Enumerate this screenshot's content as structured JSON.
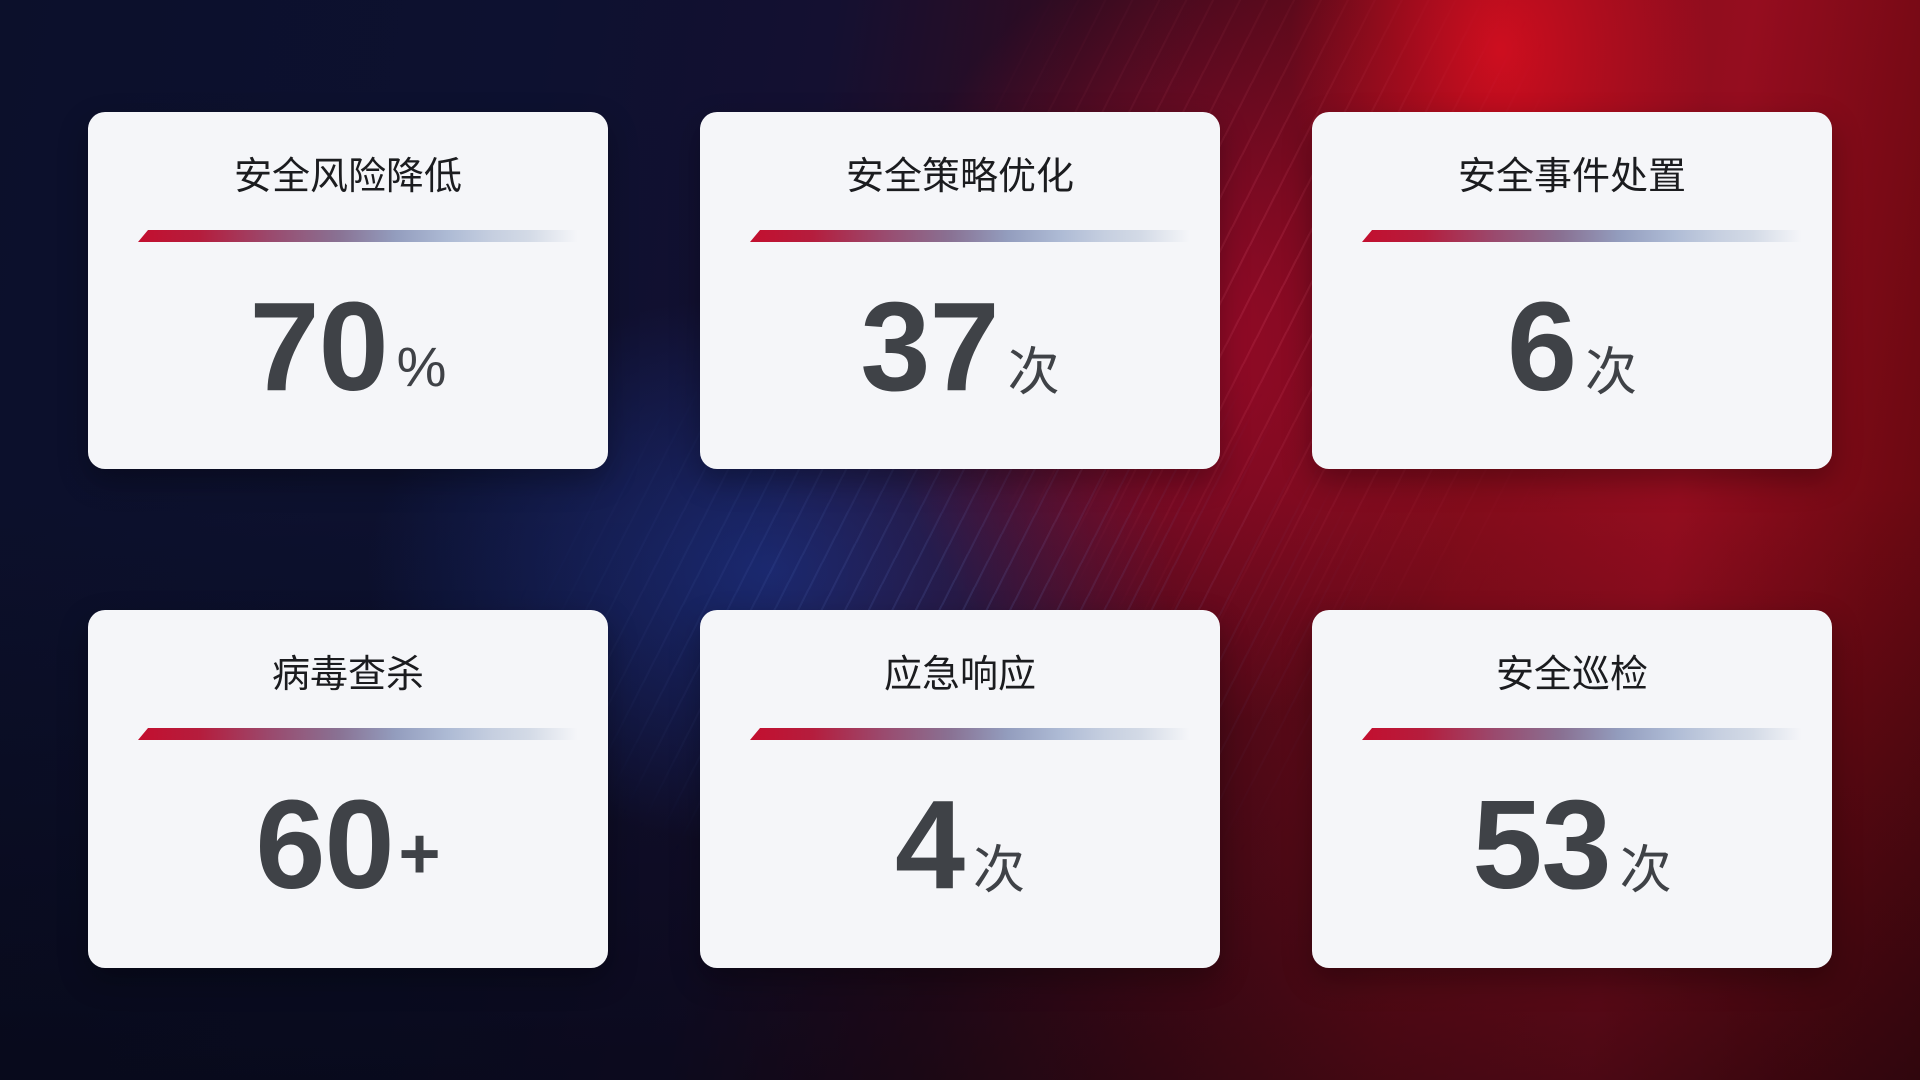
{
  "cards": [
    {
      "title": "安全风险降低",
      "value": "70",
      "suffix": "%"
    },
    {
      "title": "安全策略优化",
      "value": "37",
      "suffix": "次"
    },
    {
      "title": "安全事件处置",
      "value": "6",
      "suffix": "次"
    },
    {
      "title": "病毒查杀",
      "value": "60",
      "suffix": "+"
    },
    {
      "title": "应急响应",
      "value": "4",
      "suffix": "次"
    },
    {
      "title": "安全巡检",
      "value": "53",
      "suffix": "次"
    }
  ],
  "colors": {
    "card_background": "#f5f6f9",
    "title_text": "#1b1c1f",
    "value_text": "#3f4247",
    "divider_red": "#c30f2f",
    "divider_light_blue": "#d3dae6",
    "background_navy": "#0c102b",
    "background_red": "#950d1f",
    "background_blue_glow": "#203ea5"
  }
}
